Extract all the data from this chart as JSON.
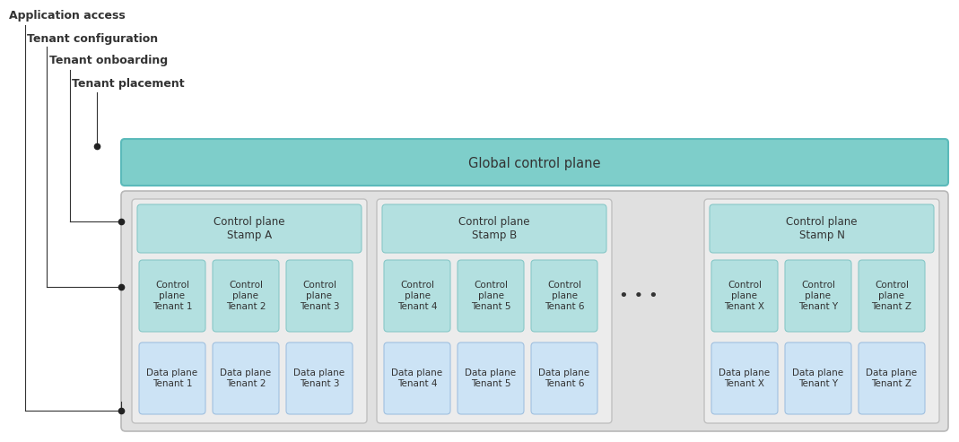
{
  "bg_color": "#ffffff",
  "global_plane_color": "#7ececa",
  "stamp_header_color": "#b3e0e0",
  "control_plane_color": "#b3e0e0",
  "data_plane_color": "#cce3f5",
  "stamp_bg_color": "#d4d4d4",
  "text_color": "#333333",
  "line_color": "#333333",
  "labels": {
    "app_access": "Application access",
    "tenant_config": "Tenant configuration",
    "tenant_onboard": "Tenant onboarding",
    "tenant_place": "Tenant placement",
    "global_plane": "Global control plane",
    "dots": "• • •"
  },
  "control_tenants_a": [
    "Control\nplane\nTenant 1",
    "Control\nplane\nTenant 2",
    "Control\nplane\nTenant 3"
  ],
  "control_tenants_b": [
    "Control\nplane\nTenant 4",
    "Control\nplane\nTenant 5",
    "Control\nplane\nTenant 6"
  ],
  "control_tenants_n": [
    "Control\nplane\nTenant X",
    "Control\nplane\nTenant Y",
    "Control\nplane\nTenant Z"
  ],
  "data_tenants_a": [
    "Data plane\nTenant 1",
    "Data plane\nTenant 2",
    "Data plane\nTenant 3"
  ],
  "data_tenants_b": [
    "Data plane\nTenant 4",
    "Data plane\nTenant 5",
    "Data plane\nTenant 6"
  ],
  "data_tenants_n": [
    "Data plane\nTenant X",
    "Data plane\nTenant Y",
    "Data plane\nTenant Z"
  ],
  "stamp_headers": [
    "Control plane\nStamp A",
    "Control plane\nStamp B",
    "Control plane\nStamp N"
  ]
}
